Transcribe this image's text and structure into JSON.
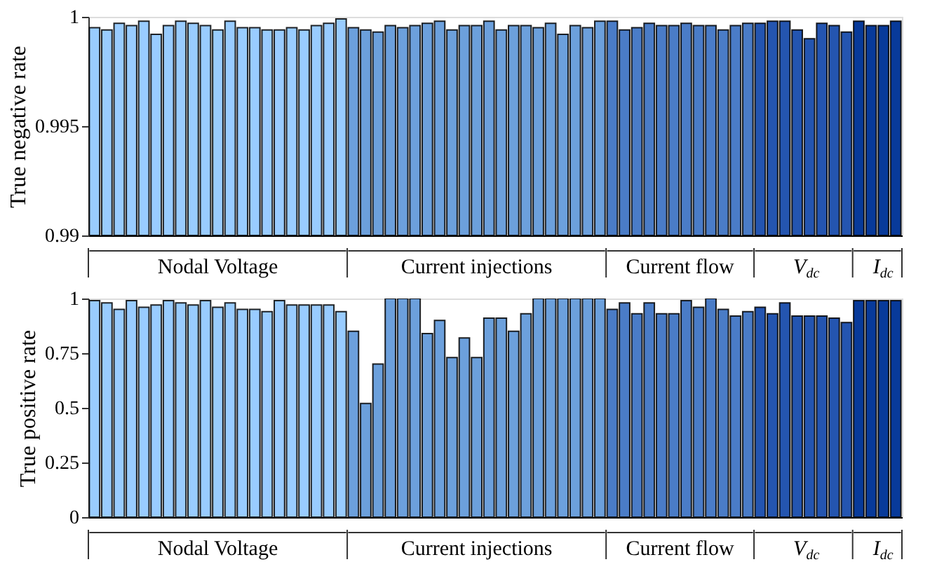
{
  "chart_data": [
    {
      "type": "bar",
      "ylabel": "True negative rate",
      "categories": [
        null,
        null,
        null,
        null,
        null,
        null,
        null,
        null,
        null,
        null,
        null,
        null,
        null,
        null,
        null,
        null,
        null,
        null,
        null,
        null,
        null,
        null,
        null,
        null,
        null,
        null,
        null,
        null,
        null,
        null,
        null,
        null,
        null,
        null,
        null,
        null,
        null,
        null,
        null,
        null,
        null,
        null,
        null,
        null,
        null,
        null,
        null,
        null,
        null,
        null,
        null,
        null,
        null,
        null,
        null,
        null,
        null,
        null,
        null,
        null,
        null,
        null,
        null,
        null,
        null,
        null
      ],
      "ylim": [
        0.99,
        1
      ],
      "yticks": [
        0.99,
        0.995,
        1
      ],
      "grid": false,
      "legend": false,
      "series": [
        {
          "name": "Nodal Voltage",
          "color": "#99ccff",
          "values": [
            0.9995,
            0.9994,
            0.9997,
            0.9996,
            0.9998,
            0.9992,
            0.9996,
            0.9998,
            0.9997,
            0.9996,
            0.9994,
            0.9998,
            0.9995,
            0.9995,
            0.9994,
            0.9994,
            0.9995,
            0.9994,
            0.9996,
            0.9997,
            0.9999,
            null,
            null,
            null,
            null,
            null,
            null,
            null,
            null,
            null,
            null,
            null,
            null,
            null,
            null,
            null,
            null,
            null,
            null,
            null,
            null,
            null,
            null,
            null,
            null,
            null,
            null,
            null,
            null,
            null,
            null,
            null,
            null,
            null,
            null,
            null,
            null,
            null,
            null,
            null,
            null,
            null,
            null,
            null,
            null,
            null
          ]
        },
        {
          "name": "Current injections",
          "color": "#6ca0dc",
          "values": [
            null,
            null,
            null,
            null,
            null,
            null,
            null,
            null,
            null,
            null,
            null,
            null,
            null,
            null,
            null,
            null,
            null,
            null,
            null,
            null,
            null,
            0.9995,
            0.9994,
            0.9993,
            0.9996,
            0.9995,
            0.9996,
            0.9997,
            0.9998,
            0.9994,
            0.9996,
            0.9996,
            0.9998,
            0.9994,
            0.9996,
            0.9996,
            0.9995,
            0.9997,
            0.9992,
            0.9996,
            0.9995,
            0.9998,
            null,
            null,
            null,
            null,
            null,
            null,
            null,
            null,
            null,
            null,
            null,
            null,
            null,
            null,
            null,
            null,
            null,
            null,
            null,
            null,
            null,
            null,
            null,
            null
          ]
        },
        {
          "name": "Current flow",
          "color": "#4a7cc7",
          "values": [
            null,
            null,
            null,
            null,
            null,
            null,
            null,
            null,
            null,
            null,
            null,
            null,
            null,
            null,
            null,
            null,
            null,
            null,
            null,
            null,
            null,
            null,
            null,
            null,
            null,
            null,
            null,
            null,
            null,
            null,
            null,
            null,
            null,
            null,
            null,
            null,
            null,
            null,
            null,
            null,
            null,
            null,
            0.9998,
            0.9994,
            0.9995,
            0.9997,
            0.9996,
            0.9996,
            0.9997,
            0.9996,
            0.9996,
            0.9994,
            0.9996,
            0.9997,
            null,
            null,
            null,
            null,
            null,
            null,
            null,
            null,
            null,
            null,
            null,
            null
          ]
        },
        {
          "name": "V$_{dc}$",
          "color": "#2455b0",
          "values": [
            null,
            null,
            null,
            null,
            null,
            null,
            null,
            null,
            null,
            null,
            null,
            null,
            null,
            null,
            null,
            null,
            null,
            null,
            null,
            null,
            null,
            null,
            null,
            null,
            null,
            null,
            null,
            null,
            null,
            null,
            null,
            null,
            null,
            null,
            null,
            null,
            null,
            null,
            null,
            null,
            null,
            null,
            null,
            null,
            null,
            null,
            null,
            null,
            null,
            null,
            null,
            null,
            null,
            null,
            0.9997,
            0.9998,
            0.9998,
            0.9994,
            0.999,
            0.9997,
            0.9996,
            0.9993,
            null,
            null,
            null,
            null
          ]
        },
        {
          "name": "I$_{dc}$",
          "color": "#083a9a",
          "values": [
            null,
            null,
            null,
            null,
            null,
            null,
            null,
            null,
            null,
            null,
            null,
            null,
            null,
            null,
            null,
            null,
            null,
            null,
            null,
            null,
            null,
            null,
            null,
            null,
            null,
            null,
            null,
            null,
            null,
            null,
            null,
            null,
            null,
            null,
            null,
            null,
            null,
            null,
            null,
            null,
            null,
            null,
            null,
            null,
            null,
            null,
            null,
            null,
            null,
            null,
            null,
            null,
            null,
            null,
            null,
            null,
            null,
            null,
            null,
            null,
            null,
            null,
            0.9998,
            0.9996,
            0.9996,
            0.9998
          ]
        }
      ]
    },
    {
      "type": "bar",
      "ylabel": "True positive rate",
      "categories": [
        null,
        null,
        null,
        null,
        null,
        null,
        null,
        null,
        null,
        null,
        null,
        null,
        null,
        null,
        null,
        null,
        null,
        null,
        null,
        null,
        null,
        null,
        null,
        null,
        null,
        null,
        null,
        null,
        null,
        null,
        null,
        null,
        null,
        null,
        null,
        null,
        null,
        null,
        null,
        null,
        null,
        null,
        null,
        null,
        null,
        null,
        null,
        null,
        null,
        null,
        null,
        null,
        null,
        null,
        null,
        null,
        null,
        null,
        null,
        null,
        null,
        null,
        null,
        null,
        null,
        null
      ],
      "ylim": [
        0,
        1
      ],
      "yticks": [
        0,
        0.25,
        0.5,
        0.75,
        1
      ],
      "grid": false,
      "legend": false,
      "series": [
        {
          "name": "Nodal Voltage",
          "color": "#99ccff",
          "values": [
            0.99,
            0.98,
            0.95,
            0.99,
            0.96,
            0.97,
            0.99,
            0.98,
            0.97,
            0.99,
            0.96,
            0.98,
            0.95,
            0.95,
            0.94,
            0.99,
            0.97,
            0.97,
            0.97,
            0.97,
            0.94,
            null,
            null,
            null,
            null,
            null,
            null,
            null,
            null,
            null,
            null,
            null,
            null,
            null,
            null,
            null,
            null,
            null,
            null,
            null,
            null,
            null,
            null,
            null,
            null,
            null,
            null,
            null,
            null,
            null,
            null,
            null,
            null,
            null,
            null,
            null,
            null,
            null,
            null,
            null,
            null,
            null,
            null,
            null,
            null,
            null
          ]
        },
        {
          "name": "Current injections",
          "color": "#6ca0dc",
          "values": [
            null,
            null,
            null,
            null,
            null,
            null,
            null,
            null,
            null,
            null,
            null,
            null,
            null,
            null,
            null,
            null,
            null,
            null,
            null,
            null,
            null,
            0.85,
            0.52,
            0.7,
            1,
            1,
            1,
            0.84,
            0.9,
            0.73,
            0.82,
            0.73,
            0.91,
            0.91,
            0.85,
            0.93,
            1,
            1,
            1,
            1,
            1,
            1,
            null,
            null,
            null,
            null,
            null,
            null,
            null,
            null,
            null,
            null,
            null,
            null,
            null,
            null,
            null,
            null,
            null,
            null,
            null,
            null,
            null,
            null,
            null,
            null
          ]
        },
        {
          "name": "Current flow",
          "color": "#4a7cc7",
          "values": [
            null,
            null,
            null,
            null,
            null,
            null,
            null,
            null,
            null,
            null,
            null,
            null,
            null,
            null,
            null,
            null,
            null,
            null,
            null,
            null,
            null,
            null,
            null,
            null,
            null,
            null,
            null,
            null,
            null,
            null,
            null,
            null,
            null,
            null,
            null,
            null,
            null,
            null,
            null,
            null,
            null,
            null,
            0.95,
            0.98,
            0.93,
            0.98,
            0.93,
            0.93,
            0.99,
            0.96,
            1,
            0.95,
            0.92,
            0.94,
            null,
            null,
            null,
            null,
            null,
            null,
            null,
            null,
            null,
            null,
            null,
            null
          ]
        },
        {
          "name": "V$_{dc}$",
          "color": "#2455b0",
          "values": [
            null,
            null,
            null,
            null,
            null,
            null,
            null,
            null,
            null,
            null,
            null,
            null,
            null,
            null,
            null,
            null,
            null,
            null,
            null,
            null,
            null,
            null,
            null,
            null,
            null,
            null,
            null,
            null,
            null,
            null,
            null,
            null,
            null,
            null,
            null,
            null,
            null,
            null,
            null,
            null,
            null,
            null,
            null,
            null,
            null,
            null,
            null,
            null,
            null,
            null,
            null,
            null,
            null,
            null,
            0.96,
            0.93,
            0.98,
            0.92,
            0.92,
            0.92,
            0.91,
            0.89,
            null,
            null,
            null,
            null
          ]
        },
        {
          "name": "I$_{dc}$",
          "color": "#083a9a",
          "values": [
            null,
            null,
            null,
            null,
            null,
            null,
            null,
            null,
            null,
            null,
            null,
            null,
            null,
            null,
            null,
            null,
            null,
            null,
            null,
            null,
            null,
            null,
            null,
            null,
            null,
            null,
            null,
            null,
            null,
            null,
            null,
            null,
            null,
            null,
            null,
            null,
            null,
            null,
            null,
            null,
            null,
            null,
            null,
            null,
            null,
            null,
            null,
            null,
            null,
            null,
            null,
            null,
            null,
            null,
            null,
            null,
            null,
            null,
            null,
            null,
            null,
            null,
            0.99,
            0.99,
            0.99,
            0.99
          ]
        }
      ]
    }
  ]
}
